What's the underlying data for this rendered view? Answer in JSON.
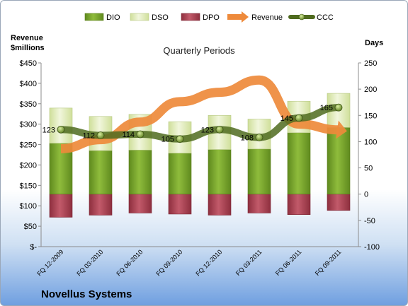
{
  "chart_data": {
    "type": "bar",
    "company": "Novellus Systems",
    "subtitle": "Quarterly Periods",
    "left_axis_title": [
      "Revenue",
      "$millions"
    ],
    "right_axis_title": "Days",
    "left_axis": {
      "min": 0,
      "max": 450,
      "step": 50,
      "tick_labels": [
        "$-",
        "$50",
        "$100",
        "$150",
        "$200",
        "$250",
        "$300",
        "$350",
        "$400",
        "$450"
      ]
    },
    "right_axis": {
      "min": -100,
      "max": 250,
      "step": 50,
      "tick_labels": [
        "-100",
        "-50",
        "0",
        "50",
        "100",
        "150",
        "200",
        "250"
      ]
    },
    "categories": [
      "FQ 12-2009",
      "FQ 03-2010",
      "FQ 06-2010",
      "FQ 09-2010",
      "FQ 12-2010",
      "FQ 03-2011",
      "FQ 06-2011",
      "FQ 09-2011"
    ],
    "legend": [
      "DIO",
      "DSO",
      "DPO",
      "Revenue",
      "CCC"
    ],
    "series": [
      {
        "name": "DIO",
        "axis": "right",
        "values": [
          97,
          83,
          84,
          78,
          85,
          86,
          117,
          127
        ]
      },
      {
        "name": "DSO",
        "axis": "right",
        "values": [
          67,
          65,
          68,
          60,
          65,
          57,
          60,
          65
        ]
      },
      {
        "name": "DPO",
        "axis": "right",
        "values": [
          -44,
          -40,
          -36,
          -38,
          -40,
          -36,
          -39,
          -31
        ]
      },
      {
        "name": "Revenue",
        "axis": "left",
        "values": [
          240,
          262,
          305,
          355,
          378,
          408,
          300,
          286
        ]
      },
      {
        "name": "CCC",
        "axis": "right",
        "values": [
          123,
          112,
          114,
          105,
          123,
          108,
          145,
          165
        ]
      }
    ],
    "data_labels": [
      "123",
      "112",
      "114",
      "105",
      "123",
      "108",
      "145",
      "165"
    ],
    "colors": {
      "DIO": "#77a22c",
      "DSO": "#dfe9b8",
      "DPO": "#b3485a",
      "Revenue": "#ee8a3b",
      "CCC": "#4f6b1f"
    }
  }
}
